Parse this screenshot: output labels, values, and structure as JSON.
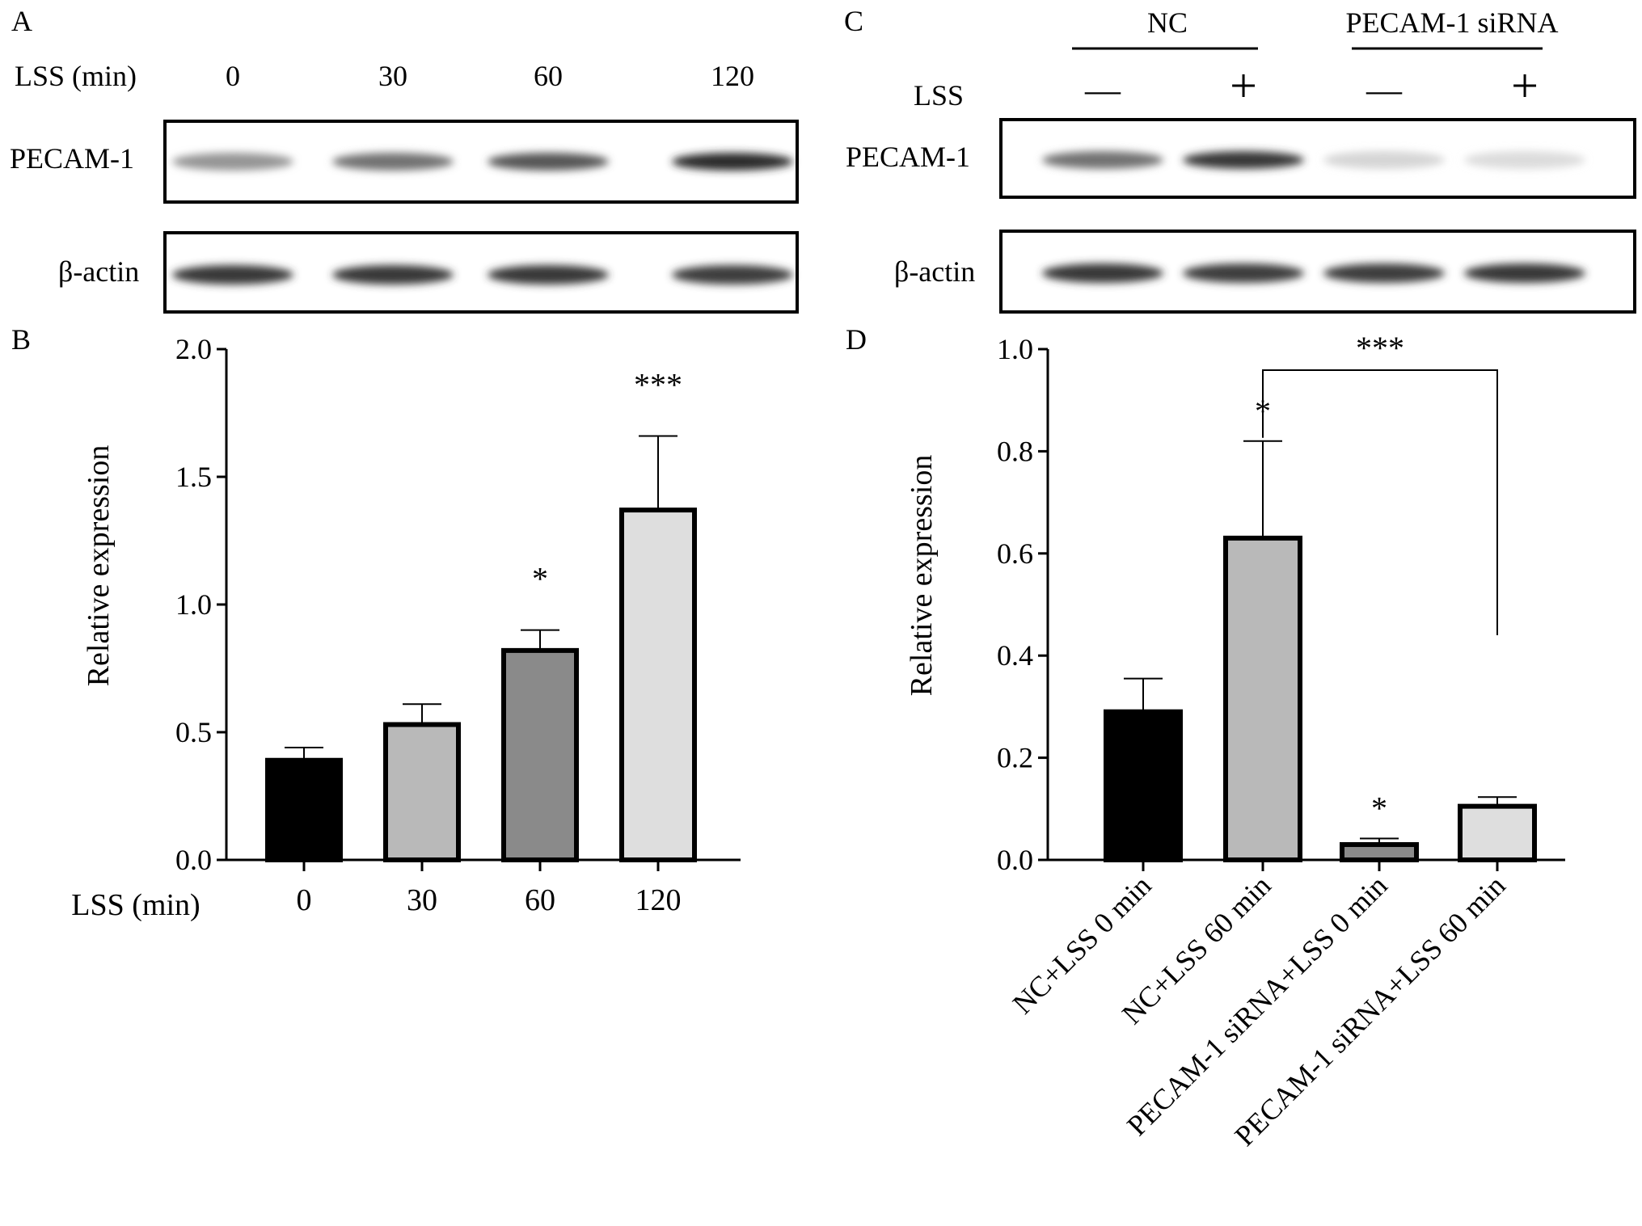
{
  "panels": {
    "A": {
      "letter": "A",
      "lss_label": "LSS (min)",
      "lane_labels": [
        "0",
        "30",
        "60",
        "120"
      ],
      "row_labels": [
        "PECAM-1",
        "β-actin"
      ],
      "pecam_intensity": [
        0.45,
        0.6,
        0.72,
        0.9
      ],
      "actin_intensity": [
        0.85,
        0.85,
        0.85,
        0.82
      ]
    },
    "C": {
      "letter": "C",
      "group_labels": [
        "NC",
        "PECAM-1 siRNA"
      ],
      "lss_label": "LSS",
      "lss_signs": [
        "—",
        "+",
        "—",
        "+"
      ],
      "row_labels": [
        "PECAM-1",
        "β-actin"
      ],
      "pecam_intensity": [
        0.6,
        0.85,
        0.18,
        0.15
      ],
      "actin_intensity": [
        0.85,
        0.82,
        0.82,
        0.85
      ]
    },
    "B": {
      "letter": "B"
    },
    "D": {
      "letter": "D"
    }
  },
  "colors": {
    "black": "#000000",
    "gray1": "#b9b9b9",
    "gray2": "#8a8a8a",
    "gray3": "#dedede"
  },
  "chart_data": [
    {
      "panel": "B",
      "type": "bar",
      "title": "",
      "xlabel": "LSS (min)",
      "ylabel": "Relative expression",
      "categories": [
        "0",
        "30",
        "60",
        "120"
      ],
      "values": [
        0.39,
        0.53,
        0.82,
        1.37
      ],
      "errors": [
        0.05,
        0.08,
        0.08,
        0.29
      ],
      "annotations": [
        "",
        "",
        "*",
        "***"
      ],
      "bar_colors": [
        "#000000",
        "#b9b9b9",
        "#8a8a8a",
        "#dedede"
      ],
      "ylim": [
        0,
        2.0
      ],
      "yticks": [
        "0.0",
        "0.5",
        "1.0",
        "1.5",
        "2.0"
      ]
    },
    {
      "panel": "D",
      "type": "bar",
      "title": "",
      "xlabel": "",
      "ylabel": "Relative expression",
      "categories": [
        "NC+LSS 0 min",
        "NC+LSS 60 min",
        "PECAM-1 siRNA+LSS 0 min",
        "PECAM-1 siRNA+LSS 60 min"
      ],
      "values": [
        0.29,
        0.63,
        0.03,
        0.105
      ],
      "errors": [
        0.065,
        0.19,
        0.012,
        0.018
      ],
      "annotations": [
        "",
        "*",
        "*",
        ""
      ],
      "bracket": {
        "from": 1,
        "to": 3,
        "label": "***"
      },
      "bar_colors": [
        "#000000",
        "#b9b9b9",
        "#8a8a8a",
        "#dedede"
      ],
      "ylim": [
        0,
        1.0
      ],
      "yticks": [
        "0.0",
        "0.2",
        "0.4",
        "0.6",
        "0.8",
        "1.0"
      ]
    }
  ]
}
